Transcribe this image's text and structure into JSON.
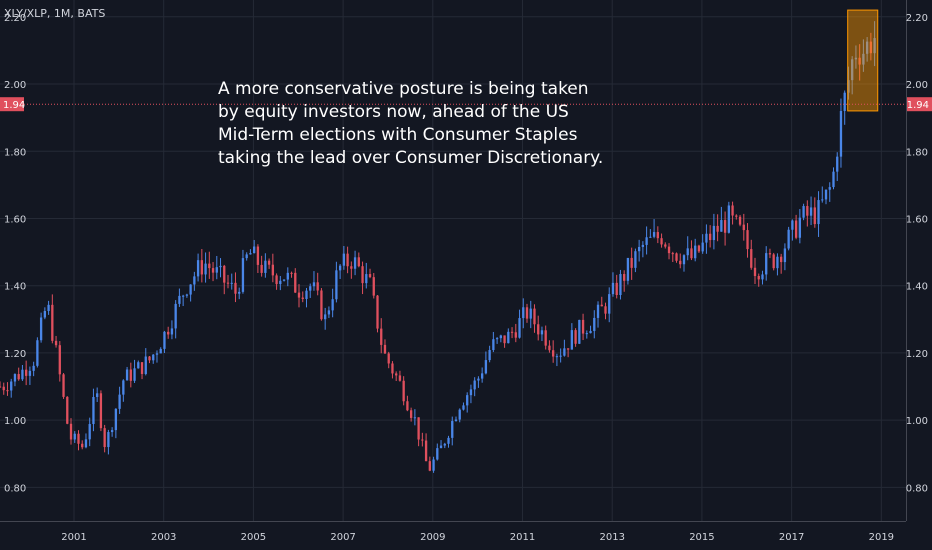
{
  "chart_data": {
    "type": "candlestick",
    "symbol": "XLY/XLP, 1M, BATS",
    "annotation_lines": [
      "A more conservative posture is being taken",
      "by equity investors now, ahead of the US",
      "Mid-Term elections with Consumer Staples",
      "taking the lead over Consumer Discretionary."
    ],
    "current_price": 1.94,
    "current_price_label": "1.94",
    "x_range": [
      1999.35,
      2019.55
    ],
    "ylim": [
      0.7,
      2.25
    ],
    "y_ticks": [
      0.8,
      1.0,
      1.2,
      1.4,
      1.6,
      1.8,
      2.0,
      2.2
    ],
    "y_tick_labels": [
      "0.80",
      "1.00",
      "1.20",
      "1.40",
      "1.60",
      "1.80",
      "2.00",
      "2.20"
    ],
    "x_ticks": [
      2001,
      2003,
      2005,
      2007,
      2009,
      2011,
      2013,
      2015,
      2017,
      2019
    ],
    "x_tick_labels": [
      "2001",
      "2003",
      "2005",
      "2007",
      "2009",
      "2011",
      "2013",
      "2015",
      "2017",
      "2019"
    ],
    "highlight_box": {
      "x_start": 2018.25,
      "x_end": 2018.92,
      "y_low": 1.92,
      "y_high": 2.22
    },
    "anchors": [
      [
        1999.4,
        1.1
      ],
      [
        1999.8,
        1.14
      ],
      [
        2000.1,
        1.18
      ],
      [
        2000.4,
        1.35
      ],
      [
        2000.6,
        1.2
      ],
      [
        2000.9,
        0.95
      ],
      [
        2001.2,
        0.92
      ],
      [
        2001.5,
        1.08
      ],
      [
        2001.7,
        0.92
      ],
      [
        2002.1,
        1.12
      ],
      [
        2002.7,
        1.18
      ],
      [
        2003.0,
        1.25
      ],
      [
        2003.5,
        1.4
      ],
      [
        2003.9,
        1.47
      ],
      [
        2004.3,
        1.42
      ],
      [
        2004.6,
        1.38
      ],
      [
        2004.9,
        1.5
      ],
      [
        2005.3,
        1.44
      ],
      [
        2005.7,
        1.43
      ],
      [
        2006.0,
        1.39
      ],
      [
        2006.3,
        1.4
      ],
      [
        2006.6,
        1.3
      ],
      [
        2006.9,
        1.45
      ],
      [
        2007.2,
        1.48
      ],
      [
        2007.6,
        1.4
      ],
      [
        2007.9,
        1.2
      ],
      [
        2008.3,
        1.1
      ],
      [
        2008.6,
        1.0
      ],
      [
        2008.9,
        0.85
      ],
      [
        2009.2,
        0.92
      ],
      [
        2009.6,
        1.05
      ],
      [
        2010.0,
        1.12
      ],
      [
        2010.3,
        1.22
      ],
      [
        2010.7,
        1.25
      ],
      [
        2011.1,
        1.32
      ],
      [
        2011.5,
        1.25
      ],
      [
        2011.8,
        1.2
      ],
      [
        2012.2,
        1.26
      ],
      [
        2012.6,
        1.3
      ],
      [
        2012.9,
        1.35
      ],
      [
        2013.3,
        1.44
      ],
      [
        2013.7,
        1.52
      ],
      [
        2014.1,
        1.55
      ],
      [
        2014.4,
        1.5
      ],
      [
        2014.8,
        1.48
      ],
      [
        2015.2,
        1.55
      ],
      [
        2015.6,
        1.6
      ],
      [
        2015.9,
        1.55
      ],
      [
        2016.2,
        1.45
      ],
      [
        2016.6,
        1.48
      ],
      [
        2016.9,
        1.53
      ],
      [
        2017.2,
        1.6
      ],
      [
        2017.6,
        1.62
      ],
      [
        2017.9,
        1.7
      ],
      [
        2018.1,
        1.9
      ],
      [
        2018.4,
        2.1
      ],
      [
        2018.6,
        2.1
      ],
      [
        2018.85,
        2.14
      ]
    ]
  }
}
